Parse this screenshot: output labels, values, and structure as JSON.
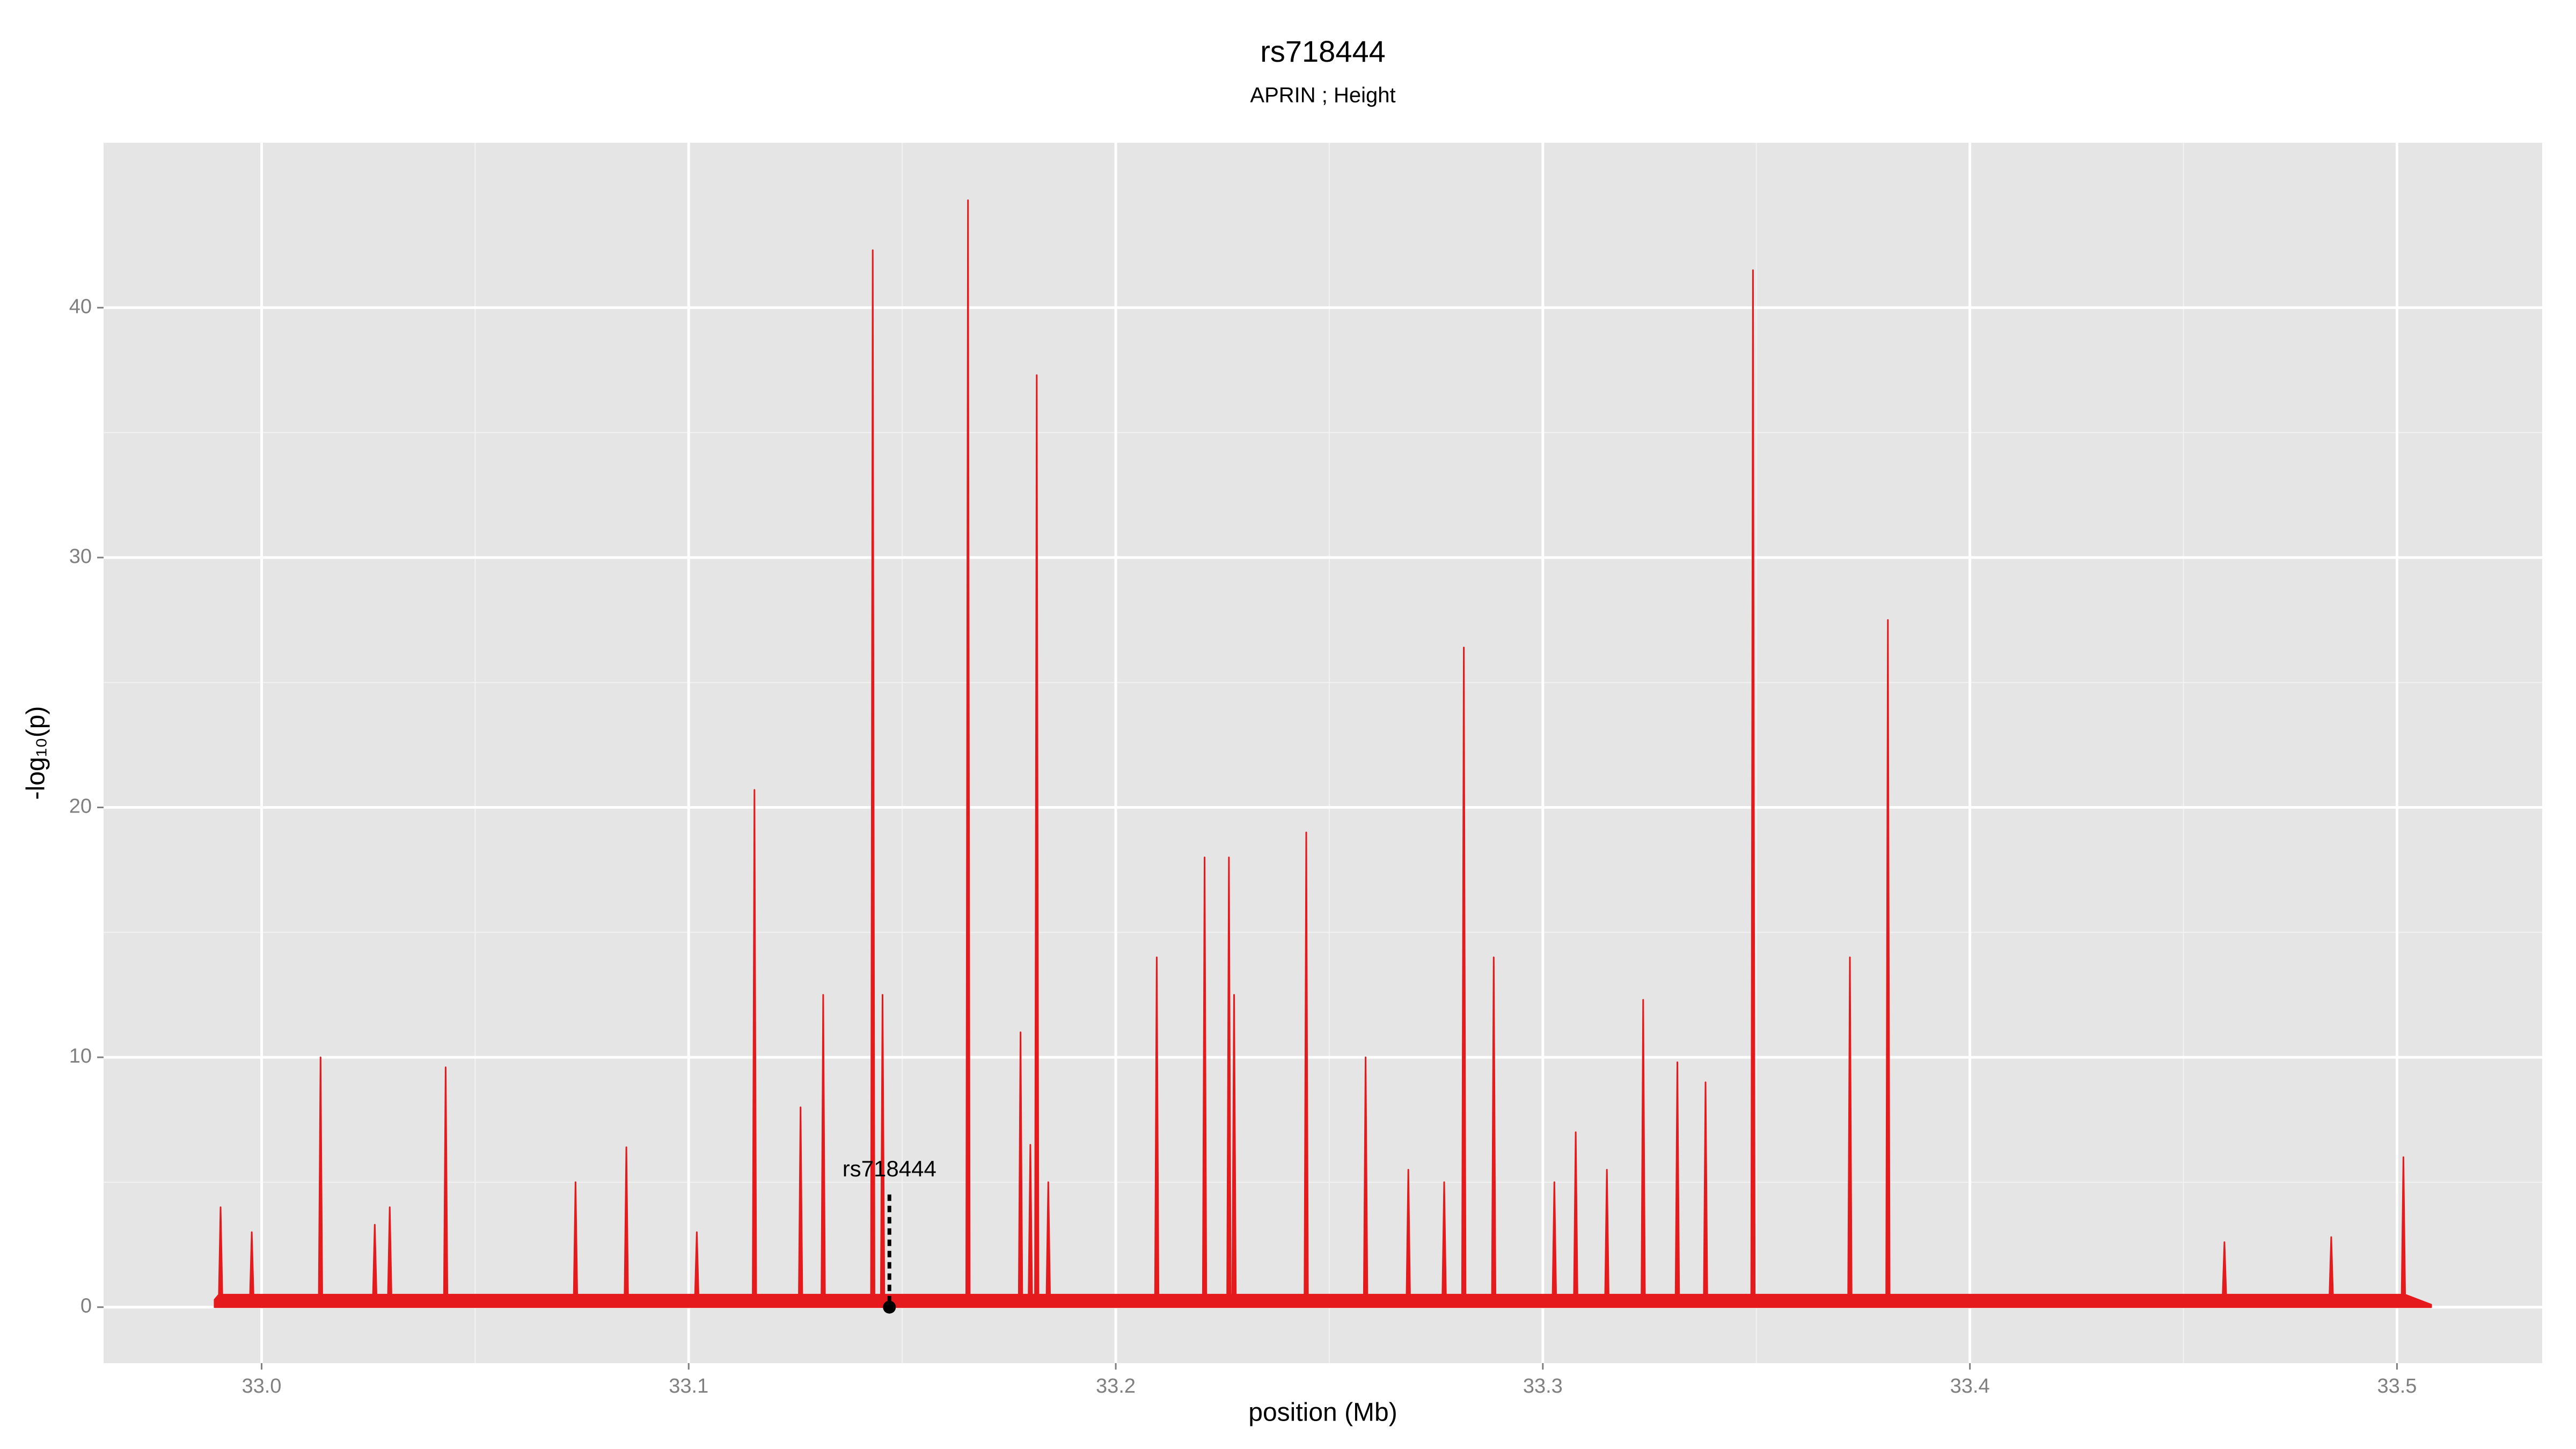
{
  "chart_data": {
    "type": "area",
    "title": "rs718444",
    "subtitle": "APRIN ; Height",
    "x_label": "position (Mb)",
    "y_label": "-log₁₀(p)",
    "xlim": [
      32.963,
      33.534
    ],
    "ylim": [
      -2.24,
      46.6
    ],
    "xticks": [
      {
        "value": 33,
        "label": "33.0"
      },
      33.1,
      33.2,
      33.3,
      33.4,
      33.5
    ],
    "yticks": [
      0,
      10,
      20,
      30,
      40
    ],
    "grid": true,
    "annotation": {
      "text": "rs718444",
      "x": 33.147,
      "y": 0
    },
    "series": [
      {
        "color": "#e41a1c",
        "x": [
          32.989,
          32.99,
          32.9904,
          32.9908,
          32.9973,
          32.9977,
          32.9981,
          33.0134,
          33.0138,
          33.0142,
          33.0261,
          33.0265,
          33.0269,
          33.0296,
          33.03,
          33.0304,
          33.0427,
          33.0431,
          33.0435,
          33.0731,
          33.0735,
          33.0739,
          33.085,
          33.0854,
          33.0858,
          33.1015,
          33.1019,
          33.1023,
          33.115,
          33.1154,
          33.1158,
          33.1258,
          33.1262,
          33.1266,
          33.1311,
          33.1315,
          33.1319,
          33.1427,
          33.1431,
          33.1435,
          33.145,
          33.1454,
          33.1458,
          33.165,
          33.1654,
          33.1658,
          33.1773,
          33.1777,
          33.1781,
          33.1796,
          33.18,
          33.1804,
          33.1811,
          33.1815,
          33.1819,
          33.1838,
          33.1842,
          33.1846,
          33.2092,
          33.2096,
          33.21,
          33.2204,
          33.2208,
          33.2212,
          33.2261,
          33.2265,
          33.2269,
          33.2273,
          33.2277,
          33.2281,
          33.2442,
          33.2446,
          33.245,
          33.2581,
          33.2585,
          33.2589,
          33.2681,
          33.2685,
          33.2689,
          33.2765,
          33.2769,
          33.2773,
          33.2811,
          33.2815,
          33.2819,
          33.2881,
          33.2885,
          33.2889,
          33.3023,
          33.3027,
          33.3031,
          33.3073,
          33.3077,
          33.3081,
          33.3146,
          33.315,
          33.3154,
          33.3231,
          33.3235,
          33.3239,
          33.3311,
          33.3315,
          33.3319,
          33.3377,
          33.3381,
          33.3385,
          33.3488,
          33.3492,
          33.3496,
          33.3715,
          33.3719,
          33.3723,
          33.3804,
          33.3808,
          33.3812,
          33.4592,
          33.4596,
          33.46,
          33.4842,
          33.4846,
          33.485,
          33.5011,
          33.5015,
          33.5019,
          33.508
        ],
        "values": [
          0.3,
          0.5,
          4,
          0.5,
          0.5,
          3,
          0.5,
          0.5,
          10,
          0.5,
          0.5,
          3.3,
          0.5,
          0.5,
          4,
          0.5,
          0.5,
          9.6,
          0.5,
          0.5,
          5,
          0.5,
          0.5,
          6.4,
          0.5,
          0.5,
          3,
          0.5,
          0.5,
          20.7,
          0.5,
          0.5,
          8,
          0.5,
          0.5,
          12.5,
          0.5,
          0.5,
          42.3,
          0.5,
          0.5,
          12.5,
          0.5,
          0.5,
          44.3,
          0.5,
          0.5,
          11,
          0.5,
          0.5,
          6.5,
          0.5,
          0.5,
          37.3,
          0.5,
          0.5,
          5,
          0.5,
          0.5,
          14,
          0.5,
          0.5,
          18,
          0.5,
          0.5,
          18,
          0.5,
          0.5,
          12.5,
          0.5,
          0.5,
          19,
          0.5,
          0.5,
          10,
          0.5,
          0.5,
          5.5,
          0.5,
          0.5,
          5,
          0.5,
          0.5,
          26.4,
          0.5,
          0.5,
          14,
          0.5,
          0.5,
          5,
          0.5,
          0.5,
          7,
          0.5,
          0.5,
          5.5,
          0.5,
          0.5,
          12.3,
          0.5,
          0.5,
          9.8,
          0.5,
          0.5,
          9,
          0.5,
          0.5,
          41.5,
          0.5,
          0.5,
          14,
          0.5,
          0.5,
          27.5,
          0.5,
          0.5,
          2.6,
          0.5,
          0.5,
          2.8,
          0.5,
          0.5,
          6,
          0.5,
          0.1
        ]
      }
    ]
  }
}
